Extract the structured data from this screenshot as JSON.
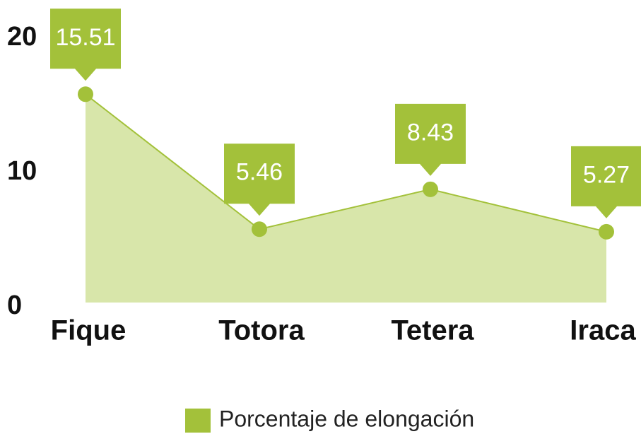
{
  "chart_data": {
    "type": "area",
    "categories": [
      "Fique",
      "Totora",
      "Tetera",
      "Iraca"
    ],
    "series": [
      {
        "name": "Porcentaje de elongación",
        "color": "#a3c13a",
        "values": [
          15.51,
          5.46,
          8.43,
          5.27
        ]
      }
    ],
    "ylim": [
      0,
      20
    ],
    "yticks": [
      0,
      10,
      20
    ]
  }
}
